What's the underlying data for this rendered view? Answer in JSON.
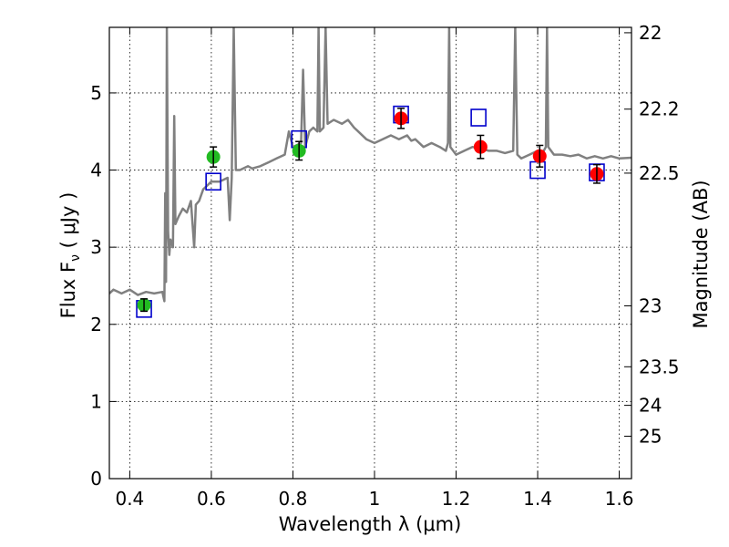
{
  "chart_data": {
    "type": "scatter",
    "xlabel": "Wavelength  λ (μm)",
    "ylabel": "Flux  F",
    "ylabel_sub": "ν",
    "ylabel_unit": "  ( μJy )",
    "y2label": "Magnitude (AB)",
    "xlim": [
      0.35,
      1.63
    ],
    "ylim": [
      0,
      5.85
    ],
    "grid": true,
    "x_ticks": [
      0.4,
      0.6,
      0.8,
      1.0,
      1.2,
      1.4,
      1.6
    ],
    "x_tick_labels": [
      "0.4",
      "0.6",
      "0.8",
      "1",
      "1.2",
      "1.4",
      "1.6"
    ],
    "y_ticks": [
      0,
      1,
      2,
      3,
      4,
      5
    ],
    "y_tick_labels": [
      "0",
      "1",
      "2",
      "3",
      "4",
      "5"
    ],
    "y2_ticks": [
      {
        "flux": 0.55,
        "label": "25"
      },
      {
        "flux": 0.95,
        "label": "24"
      },
      {
        "flux": 1.45,
        "label": "23.5"
      },
      {
        "flux": 2.24,
        "label": "23"
      },
      {
        "flux": 3.96,
        "label": "22.5"
      },
      {
        "flux": 4.79,
        "label": "22.2"
      },
      {
        "flux": 5.78,
        "label": "22"
      }
    ],
    "series": [
      {
        "kind": "spectrum",
        "color": "#808080",
        "points": [
          [
            0.35,
            2.4
          ],
          [
            0.36,
            2.45
          ],
          [
            0.38,
            2.4
          ],
          [
            0.4,
            2.45
          ],
          [
            0.42,
            2.38
          ],
          [
            0.44,
            2.42
          ],
          [
            0.46,
            2.4
          ],
          [
            0.48,
            2.42
          ],
          [
            0.485,
            2.3
          ],
          [
            0.487,
            3.7
          ],
          [
            0.489,
            2.55
          ],
          [
            0.491,
            5.85
          ],
          [
            0.494,
            3.2
          ],
          [
            0.497,
            2.9
          ],
          [
            0.5,
            3.1
          ],
          [
            0.506,
            3.0
          ],
          [
            0.509,
            4.7
          ],
          [
            0.512,
            3.3
          ],
          [
            0.52,
            3.4
          ],
          [
            0.53,
            3.5
          ],
          [
            0.54,
            3.45
          ],
          [
            0.55,
            3.6
          ],
          [
            0.558,
            3.0
          ],
          [
            0.562,
            3.55
          ],
          [
            0.57,
            3.6
          ],
          [
            0.58,
            3.75
          ],
          [
            0.59,
            3.8
          ],
          [
            0.6,
            3.85
          ],
          [
            0.62,
            3.85
          ],
          [
            0.64,
            3.9
          ],
          [
            0.645,
            3.35
          ],
          [
            0.65,
            3.9
          ],
          [
            0.655,
            5.85
          ],
          [
            0.66,
            4.0
          ],
          [
            0.67,
            4.0
          ],
          [
            0.69,
            4.05
          ],
          [
            0.7,
            4.02
          ],
          [
            0.72,
            4.05
          ],
          [
            0.74,
            4.1
          ],
          [
            0.76,
            4.15
          ],
          [
            0.78,
            4.2
          ],
          [
            0.79,
            4.5
          ],
          [
            0.8,
            4.3
          ],
          [
            0.82,
            4.35
          ],
          [
            0.825,
            5.3
          ],
          [
            0.83,
            4.3
          ],
          [
            0.84,
            4.5
          ],
          [
            0.85,
            4.55
          ],
          [
            0.86,
            4.5
          ],
          [
            0.863,
            5.85
          ],
          [
            0.866,
            4.5
          ],
          [
            0.875,
            4.55
          ],
          [
            0.88,
            5.85
          ],
          [
            0.885,
            4.6
          ],
          [
            0.9,
            4.65
          ],
          [
            0.92,
            4.6
          ],
          [
            0.935,
            4.65
          ],
          [
            0.95,
            4.55
          ],
          [
            0.96,
            4.5
          ],
          [
            0.98,
            4.4
          ],
          [
            1.0,
            4.35
          ],
          [
            1.02,
            4.4
          ],
          [
            1.04,
            4.45
          ],
          [
            1.06,
            4.4
          ],
          [
            1.08,
            4.45
          ],
          [
            1.09,
            4.38
          ],
          [
            1.1,
            4.4
          ],
          [
            1.12,
            4.3
          ],
          [
            1.14,
            4.35
          ],
          [
            1.16,
            4.3
          ],
          [
            1.175,
            4.25
          ],
          [
            1.18,
            4.35
          ],
          [
            1.183,
            5.85
          ],
          [
            1.186,
            4.3
          ],
          [
            1.2,
            4.2
          ],
          [
            1.22,
            4.25
          ],
          [
            1.24,
            4.3
          ],
          [
            1.26,
            4.28
          ],
          [
            1.28,
            4.25
          ],
          [
            1.3,
            4.25
          ],
          [
            1.32,
            4.22
          ],
          [
            1.34,
            4.25
          ],
          [
            1.345,
            5.85
          ],
          [
            1.35,
            4.2
          ],
          [
            1.36,
            4.15
          ],
          [
            1.38,
            4.2
          ],
          [
            1.4,
            4.25
          ],
          [
            1.41,
            4.2
          ],
          [
            1.42,
            4.3
          ],
          [
            1.423,
            5.85
          ],
          [
            1.426,
            4.3
          ],
          [
            1.44,
            4.2
          ],
          [
            1.46,
            4.2
          ],
          [
            1.48,
            4.18
          ],
          [
            1.5,
            4.2
          ],
          [
            1.52,
            4.15
          ],
          [
            1.54,
            4.18
          ],
          [
            1.56,
            4.15
          ],
          [
            1.58,
            4.18
          ],
          [
            1.6,
            4.15
          ],
          [
            1.63,
            4.16
          ]
        ]
      },
      {
        "kind": "model-squares",
        "color": "#0000cc",
        "x": [
          0.435,
          0.605,
          0.815,
          1.065,
          1.255,
          1.4,
          1.545
        ],
        "y": [
          2.2,
          3.85,
          4.4,
          4.72,
          4.68,
          4.0,
          3.97
        ]
      },
      {
        "kind": "observed-green",
        "color": "#22bb22",
        "x": [
          0.435,
          0.605,
          0.815
        ],
        "y": [
          2.25,
          4.17,
          4.25
        ],
        "err": [
          0.08,
          0.13,
          0.12
        ]
      },
      {
        "kind": "observed-red",
        "color": "#ff0000",
        "x": [
          1.065,
          1.26,
          1.405,
          1.545
        ],
        "y": [
          4.67,
          4.3,
          4.18,
          3.95
        ],
        "err": [
          0.13,
          0.15,
          0.14,
          0.12
        ]
      }
    ]
  }
}
